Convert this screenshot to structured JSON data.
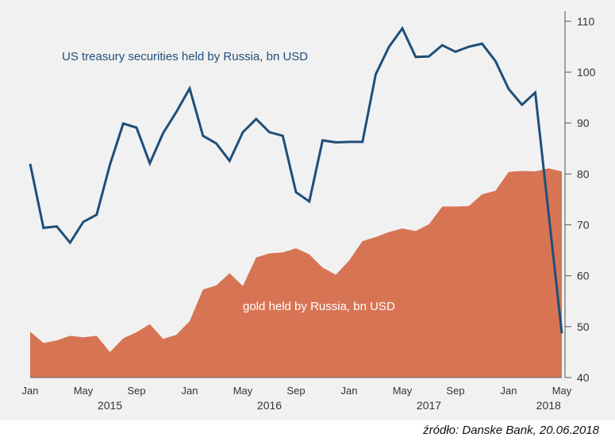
{
  "source": "źródło: Danske Bank, 20.06.2018",
  "chart_data": {
    "type": "line",
    "title": "",
    "xlabel": "",
    "ylabel": "",
    "ylim": [
      40,
      112
    ],
    "yticks": [
      40,
      50,
      60,
      70,
      80,
      90,
      100,
      110
    ],
    "grid": false,
    "x": [
      "Jan 2015",
      "Feb 2015",
      "Mar 2015",
      "Apr 2015",
      "May 2015",
      "Jun 2015",
      "Jul 2015",
      "Aug 2015",
      "Sep 2015",
      "Oct 2015",
      "Nov 2015",
      "Dec 2015",
      "Jan 2016",
      "Feb 2016",
      "Mar 2016",
      "Apr 2016",
      "May 2016",
      "Jun 2016",
      "Jul 2016",
      "Aug 2016",
      "Sep 2016",
      "Oct 2016",
      "Nov 2016",
      "Dec 2016",
      "Jan 2017",
      "Feb 2017",
      "Mar 2017",
      "Apr 2017",
      "May 2017",
      "Jun 2017",
      "Jul 2017",
      "Aug 2017",
      "Sep 2017",
      "Oct 2017",
      "Nov 2017",
      "Dec 2017",
      "Jan 2018",
      "Feb 2018",
      "Mar 2018",
      "Apr 2018",
      "May 2018"
    ],
    "month_ticks": [
      {
        "label": "Jan",
        "index": 0
      },
      {
        "label": "May",
        "index": 4
      },
      {
        "label": "Sep",
        "index": 8
      },
      {
        "label": "Jan",
        "index": 12
      },
      {
        "label": "May",
        "index": 16
      },
      {
        "label": "Sep",
        "index": 20
      },
      {
        "label": "Jan",
        "index": 24
      },
      {
        "label": "May",
        "index": 28
      },
      {
        "label": "Sep",
        "index": 32
      },
      {
        "label": "Jan",
        "index": 36
      },
      {
        "label": "May",
        "index": 40
      }
    ],
    "years": [
      {
        "label": "2015",
        "index": 6
      },
      {
        "label": "2016",
        "index": 18
      },
      {
        "label": "2017",
        "index": 30
      },
      {
        "label": "2018",
        "index": 39
      }
    ],
    "series": [
      {
        "name": "gold held by Russia, bn USD",
        "kind": "area",
        "color": "#d77454",
        "label_text_color": "#ffffff",
        "values": [
          49,
          46.8,
          47.3,
          48.2,
          47.9,
          48.2,
          45,
          47.7,
          48.9,
          50.5,
          47.6,
          48.4,
          51.1,
          57.3,
          58.1,
          60.5,
          58,
          63.6,
          64.4,
          64.6,
          65.4,
          64.2,
          61.6,
          60.2,
          63,
          66.8,
          67.6,
          68.6,
          69.3,
          68.8,
          70.1,
          73.6,
          73.6,
          73.7,
          76,
          76.7,
          80.4,
          80.6,
          80.5,
          81.1,
          80.5
        ]
      },
      {
        "name": "US treasury securities held by Russia, bn USD",
        "kind": "line",
        "color": "#1f4e79",
        "values": [
          82,
          69.4,
          69.7,
          66.5,
          70.6,
          72,
          81.8,
          89.9,
          89.1,
          82.1,
          88,
          92.2,
          96.8,
          87.5,
          86,
          82.6,
          88.2,
          90.8,
          88.2,
          87.5,
          76.4,
          74.6,
          86.6,
          86.2,
          86.3,
          86.3,
          99.6,
          105,
          108.6,
          103,
          103.1,
          105.3,
          104,
          105,
          105.6,
          102.2,
          96.7,
          93.6,
          96,
          null,
          48.7
        ]
      }
    ]
  }
}
